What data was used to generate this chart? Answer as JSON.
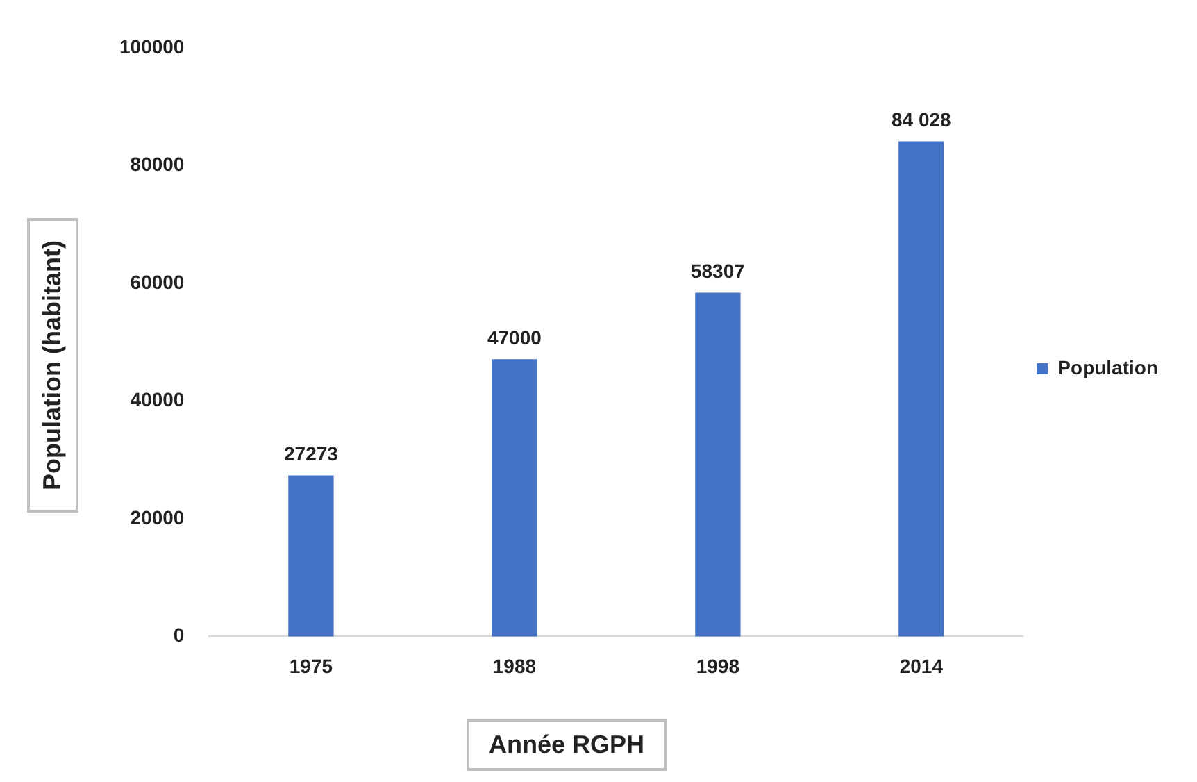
{
  "chart_data": {
    "type": "bar",
    "xlabel": "Année RGPH",
    "ylabel": "Population (habitant)",
    "categories": [
      "1975",
      "1988",
      "1998",
      "2014"
    ],
    "series": [
      {
        "name": "Population",
        "color": "#4472c4",
        "values": [
          27273,
          47000,
          58307,
          84028
        ],
        "value_labels": [
          "27273",
          "47000",
          "58307",
          "84 028"
        ]
      }
    ],
    "ylim": [
      0,
      100000
    ],
    "yticks": [
      0,
      20000,
      40000,
      60000,
      80000,
      100000
    ],
    "legend": "right"
  }
}
